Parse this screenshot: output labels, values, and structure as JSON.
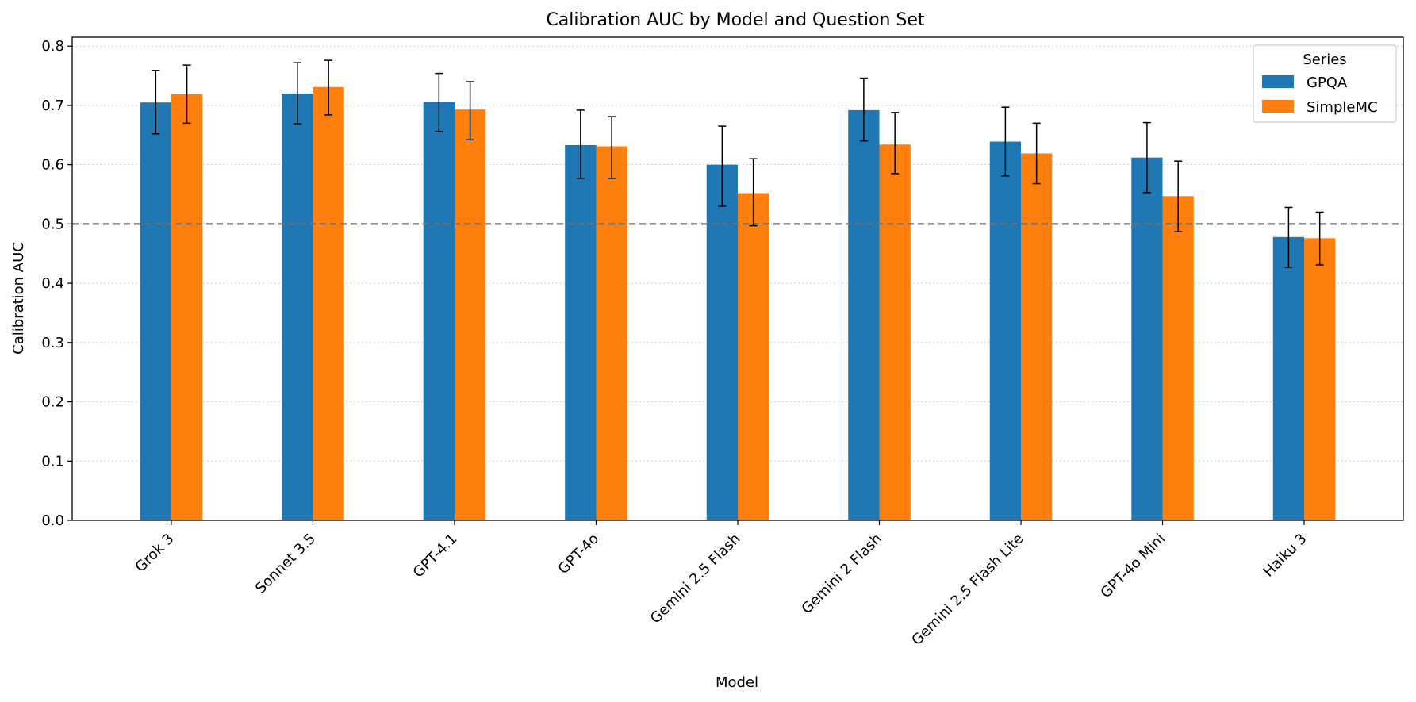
{
  "chart_data": {
    "type": "bar",
    "title": "Calibration AUC by Model and Question Set",
    "xlabel": "Model",
    "ylabel": "Calibration AUC",
    "ylim": [
      0,
      0.815
    ],
    "yticks": [
      "0.0",
      "0.1",
      "0.2",
      "0.3",
      "0.4",
      "0.5",
      "0.6",
      "0.7",
      "0.8"
    ],
    "reference_line": 0.5,
    "grid": "horizontal dotted",
    "legend": {
      "title": "Series",
      "placement": "top-right"
    },
    "categories": [
      "Grok 3",
      "Sonnet 3.5",
      "GPT-4.1",
      "GPT-4o",
      "Gemini 2.5 Flash",
      "Gemini 2 Flash",
      "Gemini 2.5 Flash Lite",
      "GPT-4o Mini",
      "Haiku 3"
    ],
    "series": [
      {
        "name": "GPQA",
        "color": "#1f77b4",
        "values": [
          0.705,
          0.72,
          0.706,
          0.633,
          0.6,
          0.692,
          0.639,
          0.612,
          0.478
        ],
        "err_low": [
          0.652,
          0.669,
          0.656,
          0.577,
          0.53,
          0.64,
          0.581,
          0.553,
          0.427
        ],
        "err_high": [
          0.759,
          0.772,
          0.754,
          0.692,
          0.665,
          0.746,
          0.697,
          0.671,
          0.528
        ]
      },
      {
        "name": "SimpleMC",
        "color": "#ff7f0e",
        "values": [
          0.719,
          0.731,
          0.693,
          0.631,
          0.552,
          0.634,
          0.619,
          0.547,
          0.476
        ],
        "err_low": [
          0.67,
          0.684,
          0.642,
          0.577,
          0.497,
          0.585,
          0.568,
          0.487,
          0.431
        ],
        "err_high": [
          0.768,
          0.776,
          0.74,
          0.681,
          0.61,
          0.688,
          0.67,
          0.606,
          0.52
        ]
      }
    ]
  }
}
